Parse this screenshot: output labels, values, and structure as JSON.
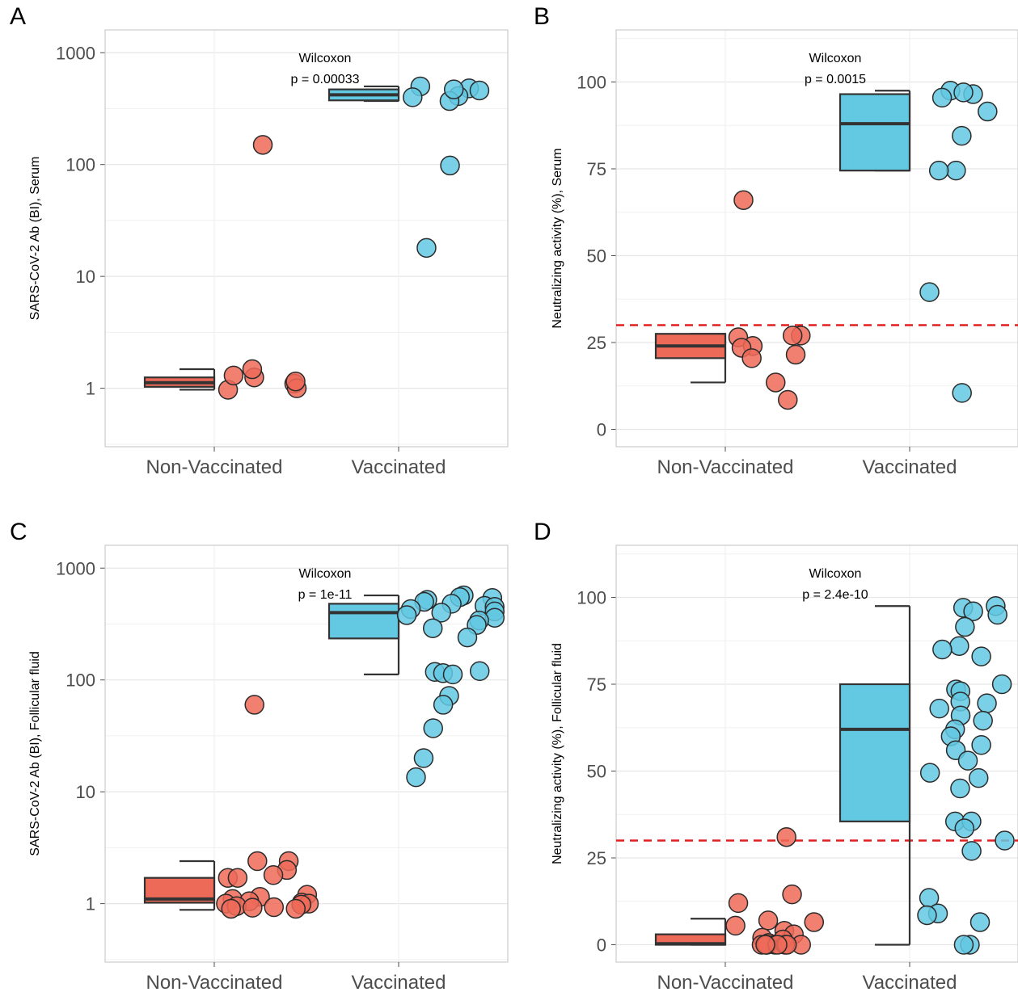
{
  "colors": {
    "non_vaccinated": "#EE6A58",
    "vaccinated": "#63C8E2",
    "threshold": "#E02020",
    "grid": "#e6e6e6",
    "panel_border": "#cccccc",
    "box_line": "#333333"
  },
  "chart_data": [
    {
      "panel": "A",
      "type": "box-jitter",
      "ylabel": "SARS-CoV-2 Ab (BI), Serum",
      "yscale": "log10",
      "ylim": [
        0.3,
        1600
      ],
      "yticks": [
        1,
        10,
        100,
        1000
      ],
      "ytick_labels": [
        "1",
        "10",
        "100",
        "1000"
      ],
      "categories": [
        "Non-Vaccinated",
        "Vaccinated"
      ],
      "stat_test": "Wilcoxon",
      "p_value": "p = 0.00033",
      "threshold": null,
      "boxes": [
        {
          "group": "Non-Vaccinated",
          "whisker_low": 0.97,
          "q1": 1.03,
          "median": 1.12,
          "q3": 1.25,
          "whisker_high": 1.48
        },
        {
          "group": "Vaccinated",
          "whisker_low": 370,
          "q1": 375,
          "median": 420,
          "q3": 470,
          "whisker_high": 500
        }
      ],
      "points": [
        {
          "group": "Non-Vaccinated",
          "values": [
            1.1,
            1.0,
            0.97,
            1.25,
            1.15,
            1.3,
            1.48,
            150
          ]
        },
        {
          "group": "Vaccinated",
          "values": [
            500,
            480,
            410,
            460,
            370,
            470,
            400,
            98,
            18
          ]
        }
      ]
    },
    {
      "panel": "B",
      "type": "box-jitter",
      "ylabel": "Neutralizing activity (%), Serum",
      "yscale": "linear",
      "ylim": [
        -5,
        115
      ],
      "yticks": [
        0,
        25,
        50,
        75,
        100
      ],
      "ytick_labels": [
        "0",
        "25",
        "50",
        "75",
        "100"
      ],
      "categories": [
        "Non-Vaccinated",
        "Vaccinated"
      ],
      "stat_test": "Wilcoxon",
      "p_value": "p = 0.0015",
      "threshold": 30,
      "boxes": [
        {
          "group": "Non-Vaccinated",
          "whisker_low": 13.5,
          "q1": 20.5,
          "median": 24,
          "q3": 27.5,
          "whisker_high": 27.5
        },
        {
          "group": "Vaccinated",
          "whisker_low": 74.5,
          "q1": 74.5,
          "median": 88,
          "q3": 96.5,
          "whisker_high": 97.5
        }
      ],
      "points": [
        {
          "group": "Non-Vaccinated",
          "values": [
            66,
            27,
            27,
            26.5,
            24,
            23.5,
            21.5,
            20.5,
            13.5,
            8.5
          ]
        },
        {
          "group": "Vaccinated",
          "values": [
            97.5,
            96.5,
            95.5,
            97,
            91.5,
            84.5,
            74.5,
            74.5,
            39.5,
            10.5
          ]
        }
      ]
    },
    {
      "panel": "C",
      "type": "box-jitter",
      "ylabel": "SARS-CoV-2 Ab (BI), Follicular fluid",
      "yscale": "log10",
      "ylim": [
        0.3,
        1600
      ],
      "yticks": [
        1,
        10,
        100,
        1000
      ],
      "ytick_labels": [
        "1",
        "10",
        "100",
        "1000"
      ],
      "categories": [
        "Non-Vaccinated",
        "Vaccinated"
      ],
      "stat_test": "Wilcoxon",
      "p_value": "p = 1e-11",
      "threshold": null,
      "boxes": [
        {
          "group": "Non-Vaccinated",
          "whisker_low": 0.88,
          "q1": 1.02,
          "median": 1.1,
          "q3": 1.7,
          "whisker_high": 2.4
        },
        {
          "group": "Vaccinated",
          "whisker_low": 112,
          "q1": 235,
          "median": 400,
          "q3": 480,
          "whisker_high": 570
        }
      ],
      "points": [
        {
          "group": "Non-Vaccinated",
          "values": [
            60,
            2.4,
            2.4,
            2.0,
            1.8,
            1.7,
            1.7,
            1.2,
            1.15,
            1.1,
            1.05,
            1.02,
            1.0,
            1.0,
            0.98,
            0.95,
            0.93,
            0.9,
            0.9,
            0.92
          ]
        },
        {
          "group": "Vaccinated",
          "values": [
            570,
            550,
            540,
            520,
            500,
            480,
            460,
            450,
            430,
            410,
            400,
            380,
            360,
            340,
            310,
            290,
            240,
            120,
            118,
            115,
            112,
            72,
            60,
            37,
            20,
            13.5
          ]
        }
      ]
    },
    {
      "panel": "D",
      "type": "box-jitter",
      "ylabel": "Neutralizing activity (%), Follicular fluid",
      "yscale": "linear",
      "ylim": [
        -5,
        115
      ],
      "yticks": [
        0,
        25,
        50,
        75,
        100
      ],
      "ytick_labels": [
        "0",
        "25",
        "50",
        "75",
        "100"
      ],
      "categories": [
        "Non-Vaccinated",
        "Vaccinated"
      ],
      "stat_test": "Wilcoxon",
      "p_value": "p = 2.4e-10",
      "threshold": 30,
      "boxes": [
        {
          "group": "Non-Vaccinated",
          "whisker_low": 0,
          "q1": 0,
          "median": 0.3,
          "q3": 3,
          "whisker_high": 7.5
        },
        {
          "group": "Vaccinated",
          "whisker_low": 0,
          "q1": 35.5,
          "median": 62,
          "q3": 75,
          "whisker_high": 97.5
        }
      ],
      "points": [
        {
          "group": "Non-Vaccinated",
          "values": [
            31,
            14.5,
            12,
            7,
            6.5,
            5.5,
            4,
            3,
            2,
            1.5,
            0.5,
            0,
            0,
            0,
            0,
            0,
            0,
            0,
            0,
            0
          ]
        },
        {
          "group": "Vaccinated",
          "values": [
            97.5,
            97,
            96,
            95,
            91.5,
            86,
            85,
            83,
            75,
            73.5,
            73,
            70,
            69.5,
            68,
            66,
            64.5,
            62,
            60,
            57.5,
            56,
            53,
            49.5,
            48,
            45,
            35.5,
            35.5,
            33.5,
            30,
            27,
            13.5,
            9,
            8.5,
            6.5,
            0,
            0
          ]
        }
      ]
    }
  ]
}
